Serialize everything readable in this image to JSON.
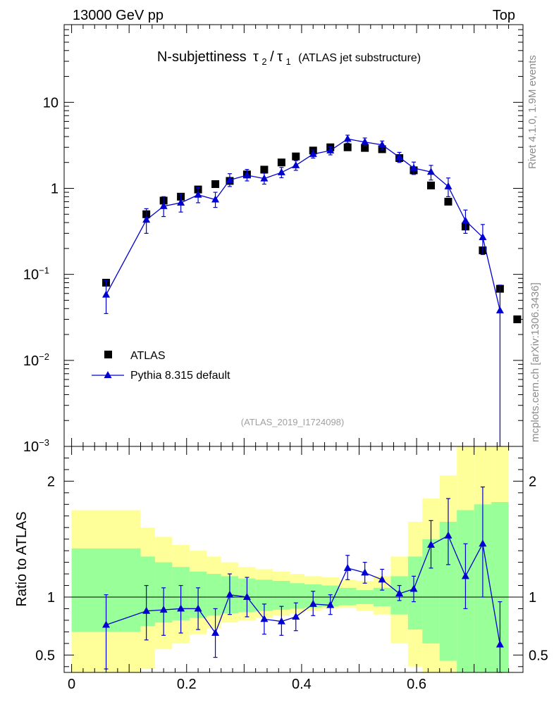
{
  "header": {
    "left": "13000 GeV pp",
    "right": "Top"
  },
  "side_labels": {
    "rivet": "Rivet 4.1.0,  1.9M events",
    "mcplots": "mcplots.cern.ch [arXiv:1306.3436]"
  },
  "watermark": "(ATLAS_2019_I1724098)",
  "colors": {
    "data": "#000000",
    "mc": "#0000d0",
    "band_inner": "#99ff99",
    "band_outer": "#ffff99"
  },
  "chart_data": [
    {
      "type": "scatter",
      "title_main": "N-subjettiness",
      "title_formula": {
        "tau": "τ",
        "sub2": "2",
        "sub1": "1",
        "slash": "/"
      },
      "title_suffix": "(ATLAS jet substructure)",
      "xlabel": "",
      "ylabel": "",
      "yscale": "log",
      "xlim": [
        -0.013,
        0.785
      ],
      "ylim": [
        0.001,
        80
      ],
      "y_ticks": [
        {
          "value": 10,
          "label": "10"
        },
        {
          "value": 1,
          "label": "1"
        },
        {
          "value": 0.1,
          "base": "10",
          "exp": "−1"
        },
        {
          "value": 0.01,
          "base": "10",
          "exp": "−2"
        },
        {
          "value": 0.001,
          "base": "10",
          "exp": "−3"
        }
      ],
      "legend": {
        "position": "bottom-left",
        "entries": [
          "ATLAS",
          "Pythia 8.315 default"
        ]
      },
      "series": [
        {
          "name": "ATLAS",
          "marker": "square",
          "x": [
            0.06,
            0.13,
            0.16,
            0.19,
            0.22,
            0.25,
            0.275,
            0.305,
            0.335,
            0.365,
            0.39,
            0.42,
            0.45,
            0.48,
            0.51,
            0.54,
            0.57,
            0.595,
            0.625,
            0.655,
            0.685,
            0.715,
            0.745,
            0.775
          ],
          "y": [
            0.08,
            0.5,
            0.72,
            0.8,
            0.97,
            1.12,
            1.22,
            1.45,
            1.65,
            2.0,
            2.35,
            2.75,
            3.0,
            3.0,
            2.95,
            2.85,
            2.25,
            1.62,
            1.08,
            0.7,
            0.36,
            0.19,
            0.068,
            0.03
          ]
        },
        {
          "name": "Pythia 8.315 default",
          "marker": "triangle",
          "x": [
            0.06,
            0.13,
            0.16,
            0.19,
            0.22,
            0.25,
            0.275,
            0.305,
            0.335,
            0.365,
            0.39,
            0.42,
            0.45,
            0.48,
            0.51,
            0.54,
            0.57,
            0.595,
            0.625,
            0.655,
            0.685,
            0.715,
            0.745
          ],
          "y": [
            0.058,
            0.43,
            0.62,
            0.68,
            0.84,
            0.74,
            1.25,
            1.42,
            1.3,
            1.53,
            1.85,
            2.5,
            2.75,
            3.75,
            3.45,
            3.2,
            2.3,
            1.72,
            1.55,
            1.05,
            0.42,
            0.27,
            0.038
          ],
          "y_lo": [
            0.035,
            0.3,
            0.47,
            0.53,
            0.68,
            0.6,
            1.05,
            1.22,
            1.12,
            1.33,
            1.62,
            2.25,
            2.45,
            3.35,
            3.1,
            2.85,
            2.0,
            1.45,
            1.25,
            0.8,
            0.3,
            0.17,
            0.0001
          ],
          "y_hi": [
            0.085,
            0.58,
            0.8,
            0.86,
            1.02,
            0.9,
            1.48,
            1.66,
            1.5,
            1.75,
            2.1,
            2.78,
            3.05,
            4.15,
            3.85,
            3.55,
            2.62,
            2.02,
            1.85,
            1.32,
            0.56,
            0.38,
            0.075
          ]
        }
      ]
    },
    {
      "type": "line",
      "ylabel": "Ratio to ATLAS",
      "xlabel": "",
      "xlim": [
        -0.013,
        0.785
      ],
      "ylim": [
        0.35,
        2.3
      ],
      "x_ticks": [
        0,
        0.2,
        0.4,
        0.6
      ],
      "x_tick_labels": [
        "0",
        "0.2",
        "0.4",
        "0.6"
      ],
      "y_ticks": [
        0.5,
        1,
        2
      ],
      "y_tick_labels": [
        "0.5",
        "1",
        "2"
      ],
      "reference": 1,
      "bands": {
        "edges": [
          0.0,
          0.12,
          0.145,
          0.175,
          0.205,
          0.235,
          0.26,
          0.29,
          0.32,
          0.35,
          0.38,
          0.405,
          0.435,
          0.465,
          0.495,
          0.525,
          0.555,
          0.585,
          0.61,
          0.64,
          0.67,
          0.7,
          0.73,
          0.76
        ],
        "inner_lo": [
          0.7,
          0.75,
          0.78,
          0.8,
          0.82,
          0.84,
          0.86,
          0.87,
          0.88,
          0.89,
          0.9,
          0.91,
          0.92,
          0.93,
          0.94,
          0.92,
          0.85,
          0.72,
          0.6,
          0.45,
          0.35,
          0.35,
          0.35
        ],
        "inner_hi": [
          1.42,
          1.35,
          1.3,
          1.26,
          1.22,
          1.2,
          1.18,
          1.16,
          1.15,
          1.14,
          1.12,
          1.11,
          1.1,
          1.08,
          1.06,
          1.08,
          1.18,
          1.35,
          1.5,
          1.65,
          1.75,
          1.8,
          1.82
        ],
        "outer_lo": [
          0.35,
          0.38,
          0.55,
          0.6,
          0.68,
          0.73,
          0.78,
          0.8,
          0.82,
          0.84,
          0.86,
          0.88,
          0.9,
          0.91,
          0.88,
          0.85,
          0.6,
          0.4,
          0.35,
          0.35,
          0.35,
          0.35,
          0.35
        ],
        "outer_hi": [
          1.75,
          1.6,
          1.52,
          1.45,
          1.4,
          1.35,
          1.3,
          1.26,
          1.24,
          1.22,
          1.2,
          1.18,
          1.17,
          1.15,
          1.14,
          1.18,
          1.35,
          1.65,
          1.85,
          2.05,
          2.3,
          2.3,
          2.3
        ]
      },
      "series": [
        {
          "name": "Pythia 8.315 default / ATLAS",
          "x": [
            0.06,
            0.13,
            0.16,
            0.19,
            0.22,
            0.25,
            0.275,
            0.305,
            0.335,
            0.365,
            0.39,
            0.42,
            0.45,
            0.48,
            0.51,
            0.54,
            0.57,
            0.595,
            0.625,
            0.655,
            0.685,
            0.715,
            0.745
          ],
          "y": [
            0.76,
            0.88,
            0.89,
            0.9,
            0.9,
            0.69,
            1.02,
            1.0,
            0.81,
            0.79,
            0.83,
            0.94,
            0.93,
            1.25,
            1.21,
            1.15,
            1.03,
            1.07,
            1.45,
            1.53,
            1.18,
            1.46,
            0.59
          ],
          "y_lo": [
            0.38,
            0.63,
            0.67,
            0.69,
            0.72,
            0.48,
            0.85,
            0.83,
            0.68,
            0.67,
            0.71,
            0.84,
            0.85,
            1.15,
            1.12,
            1.06,
            0.97,
            0.96,
            1.25,
            1.28,
            0.9,
            1.0,
            0.33
          ],
          "y_hi": [
            1.02,
            1.1,
            1.08,
            1.1,
            1.08,
            0.9,
            1.2,
            1.17,
            0.94,
            0.92,
            0.95,
            1.05,
            1.02,
            1.36,
            1.3,
            1.24,
            1.1,
            1.18,
            1.66,
            1.85,
            1.46,
            1.95,
            0.96
          ]
        }
      ]
    }
  ]
}
